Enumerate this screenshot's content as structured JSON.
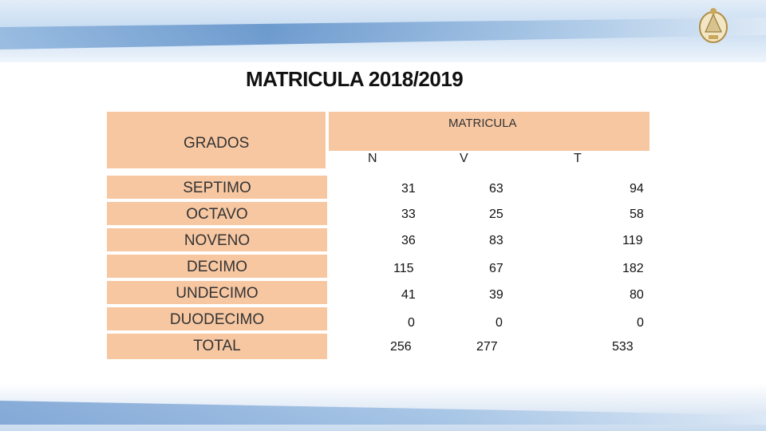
{
  "title": "MATRICULA 2018/2019",
  "header": {
    "grados": "GRADOS",
    "matricula": "MATRICULA",
    "sub": [
      "N",
      "V",
      "T"
    ]
  },
  "rows": [
    {
      "grado": "SEPTIMO",
      "n": "31",
      "v": "63",
      "t": "94"
    },
    {
      "grado": "OCTAVO",
      "n": "33",
      "v": "25",
      "t": "58"
    },
    {
      "grado": "NOVENO",
      "n": "36",
      "v": "83",
      "t": "119"
    },
    {
      "grado": "DECIMO",
      "n": "115",
      "v": "67",
      "t": "182"
    },
    {
      "grado": "UNDECIMO",
      "n": "41",
      "v": "39",
      "t": "80"
    },
    {
      "grado": "DUODECIMO",
      "n": "0",
      "v": "0",
      "t": "0"
    },
    {
      "grado": "TOTAL",
      "n": "256",
      "v": "277",
      "t": "533"
    }
  ],
  "colors": {
    "cell": "#f7c7a2",
    "accent": "#5d8fc8"
  },
  "logo": {
    "icon": "national-seal-icon"
  }
}
